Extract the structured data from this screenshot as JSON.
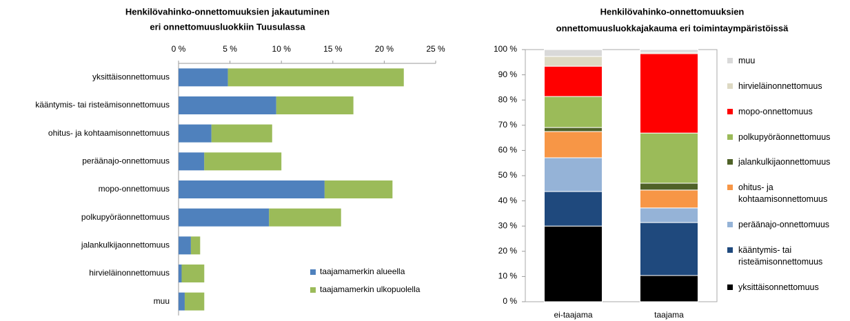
{
  "chart_data": [
    {
      "type": "bar",
      "orientation": "horizontal",
      "stacked": true,
      "title": [
        "Henkilövahinko-onnettomuuksien jakautuminen",
        "eri onnettomuusluokkiin Tuusulassa"
      ],
      "categories": [
        "yksittäisonnettomuus",
        "kääntymis- tai risteämisonnettomuus",
        "ohitus- ja kohtaamisonnettomuus",
        "peräänajo-onnettomuus",
        "mopo-onnettomuus",
        "polkupyöräonnettomuus",
        "jalankulkijaonnettomuus",
        "hirvieläinonnettomuus",
        "muu"
      ],
      "series": [
        {
          "name": "taajamamerkin alueella",
          "color": "#4f81bd",
          "values": [
            4.8,
            9.5,
            3.2,
            2.5,
            14.2,
            8.8,
            1.2,
            0.3,
            0.6
          ]
        },
        {
          "name": "taajamamerkin ulkopuolella",
          "color": "#9bbb59",
          "values": [
            17.1,
            7.5,
            5.9,
            7.5,
            6.6,
            7.0,
            0.9,
            2.2,
            1.9
          ]
        }
      ],
      "xlim": [
        0,
        25
      ],
      "xticks": [
        {
          "value": 0,
          "label": "0 %"
        },
        {
          "value": 5,
          "label": "5 %"
        },
        {
          "value": 10,
          "label": "10 %"
        },
        {
          "value": 15,
          "label": "15 %"
        },
        {
          "value": 20,
          "label": "20 %"
        },
        {
          "value": 25,
          "label": "25 %"
        }
      ],
      "legend": "lower right"
    },
    {
      "type": "bar",
      "orientation": "vertical",
      "stacked": true,
      "title": [
        "Henkilövahinko-onnettomuuksien",
        "onnettomuusluokkajakauma eri toimintaympäristöissä"
      ],
      "categories": [
        "ei-taajama",
        "taajama"
      ],
      "series": [
        {
          "name": "yksittäisonnettomuus",
          "color": "#000000",
          "values": [
            30.0,
            10.4
          ]
        },
        {
          "name": "kääntymis- tai risteämisonnettomuus",
          "color": "#1f497d",
          "values": [
            13.7,
            21.0
          ]
        },
        {
          "name": "peräänajo-onnettomuus",
          "color": "#95b3d7",
          "values": [
            13.4,
            5.8
          ]
        },
        {
          "name": "ohitus- ja kohtaamisonnettomuus",
          "color": "#f79646",
          "values": [
            10.4,
            7.1
          ]
        },
        {
          "name": "jalankulkijaonnettomuus",
          "color": "#4f6228",
          "values": [
            1.6,
            2.7
          ]
        },
        {
          "name": "polkupyöräonnettomuus",
          "color": "#9bbb59",
          "values": [
            12.3,
            19.9
          ]
        },
        {
          "name": "mopo-onnettomuus",
          "color": "#ff0000",
          "values": [
            12.0,
            31.5
          ]
        },
        {
          "name": "hirvieläinonnettomuus",
          "color": "#ddd9c3",
          "values": [
            3.9,
            0.5
          ]
        },
        {
          "name": "muu",
          "color": "#d9d9d9",
          "values": [
            2.7,
            1.1
          ]
        }
      ],
      "ylim": [
        0,
        100
      ],
      "yticks": [
        {
          "value": 0,
          "label": "0 %"
        },
        {
          "value": 10,
          "label": "10 %"
        },
        {
          "value": 20,
          "label": "20 %"
        },
        {
          "value": 30,
          "label": "30 %"
        },
        {
          "value": 40,
          "label": "40 %"
        },
        {
          "value": 50,
          "label": "50 %"
        },
        {
          "value": 60,
          "label": "60 %"
        },
        {
          "value": 70,
          "label": "70 %"
        },
        {
          "value": 80,
          "label": "80 %"
        },
        {
          "value": 90,
          "label": "90 %"
        },
        {
          "value": 100,
          "label": "100 %"
        }
      ],
      "legend": "right"
    }
  ]
}
